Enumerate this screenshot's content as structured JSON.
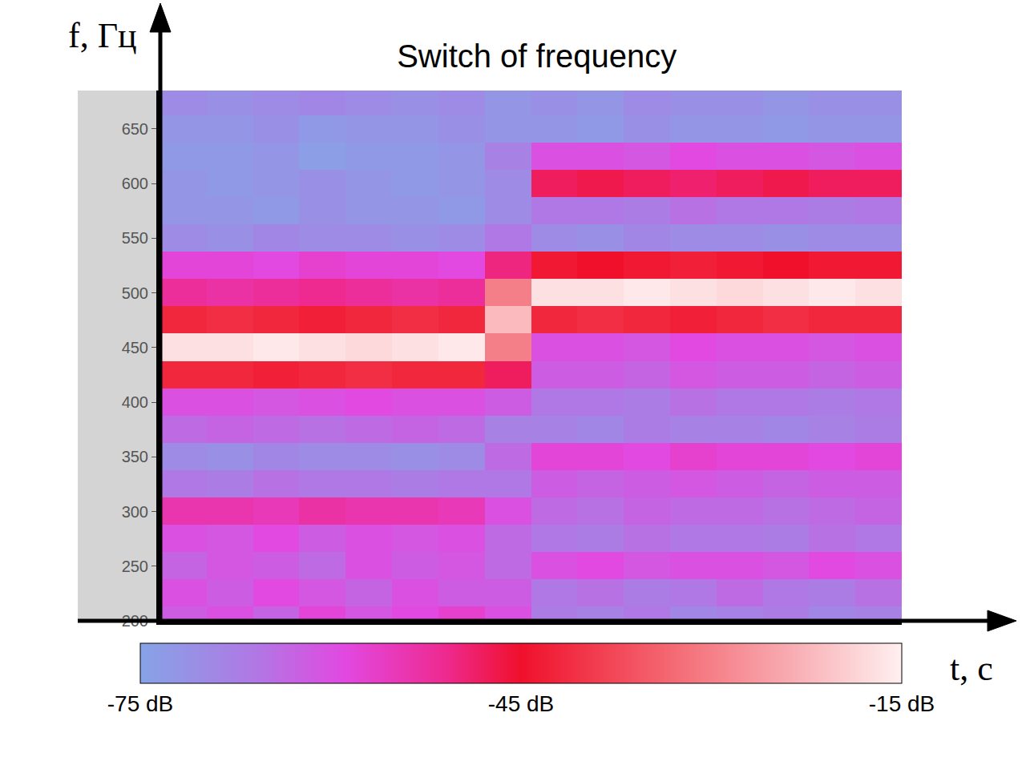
{
  "chart_data": {
    "type": "heatmap",
    "title": "Switch of frequency",
    "x_label": "t, с",
    "y_label": "f, Гц",
    "x": [
      0.5,
      1.5,
      2.5,
      3.5,
      4.5,
      5.5,
      6.5,
      7.5,
      8.5,
      9.5,
      10.5,
      11.5,
      12.5,
      13.5,
      14.5,
      15.5
    ],
    "y": [
      200,
      225,
      250,
      275,
      300,
      325,
      350,
      375,
      400,
      425,
      450,
      475,
      500,
      525,
      550,
      575,
      600,
      625,
      650,
      675
    ],
    "z": [
      [
        -62,
        -60,
        -63,
        -58,
        -61,
        -59,
        -57,
        -60,
        -67,
        -68,
        -66,
        -69,
        -68,
        -67,
        -69,
        -68
      ],
      [
        -60,
        -62,
        -59,
        -61,
        -63,
        -60,
        -62,
        -62,
        -66,
        -65,
        -67,
        -66,
        -64,
        -66,
        -67,
        -65
      ],
      [
        -63,
        -61,
        -62,
        -64,
        -60,
        -62,
        -61,
        -64,
        -60,
        -59,
        -61,
        -60,
        -60,
        -61,
        -59,
        -60
      ],
      [
        -60,
        -61,
        -59,
        -62,
        -60,
        -61,
        -60,
        -64,
        -66,
        -67,
        -65,
        -66,
        -66,
        -67,
        -65,
        -66
      ],
      [
        -54,
        -54,
        -55,
        -53,
        -54,
        -54,
        -55,
        -60,
        -64,
        -65,
        -63,
        -64,
        -64,
        -65,
        -64,
        -63
      ],
      [
        -66,
        -67,
        -65,
        -66,
        -66,
        -67,
        -66,
        -66,
        -62,
        -63,
        -62,
        -61,
        -62,
        -63,
        -62,
        -62
      ],
      [
        -70,
        -71,
        -69,
        -70,
        -70,
        -71,
        -70,
        -64,
        -58,
        -58,
        -59,
        -57,
        -58,
        -58,
        -59,
        -58
      ],
      [
        -64,
        -63,
        -64,
        -65,
        -64,
        -63,
        -64,
        -68,
        -68,
        -69,
        -67,
        -68,
        -68,
        -69,
        -68,
        -67
      ],
      [
        -60,
        -60,
        -61,
        -60,
        -59,
        -60,
        -60,
        -62,
        -66,
        -66,
        -67,
        -65,
        -66,
        -66,
        -67,
        -66
      ],
      [
        -42,
        -42,
        -43,
        -42,
        -41,
        -42,
        -42,
        -48,
        -62,
        -62,
        -63,
        -61,
        -62,
        -62,
        -63,
        -62
      ],
      [
        -17,
        -17,
        -16,
        -17,
        -18,
        -17,
        -16,
        -30,
        -60,
        -60,
        -61,
        -59,
        -60,
        -60,
        -61,
        -60
      ],
      [
        -42,
        -41,
        -42,
        -43,
        -42,
        -41,
        -42,
        -22,
        -42,
        -41,
        -42,
        -43,
        -42,
        -41,
        -42,
        -42
      ],
      [
        -52,
        -53,
        -52,
        -51,
        -52,
        -53,
        -52,
        -30,
        -17,
        -17,
        -16,
        -17,
        -18,
        -17,
        -16,
        -17
      ],
      [
        -58,
        -58,
        -59,
        -57,
        -58,
        -58,
        -59,
        -50,
        -44,
        -45,
        -44,
        -43,
        -44,
        -45,
        -44,
        -44
      ],
      [
        -70,
        -71,
        -69,
        -70,
        -70,
        -71,
        -70,
        -66,
        -70,
        -71,
        -69,
        -70,
        -70,
        -71,
        -70,
        -70
      ],
      [
        -72,
        -72,
        -73,
        -71,
        -72,
        -72,
        -73,
        -70,
        -66,
        -66,
        -67,
        -65,
        -66,
        -66,
        -67,
        -66
      ],
      [
        -72,
        -73,
        -72,
        -71,
        -72,
        -73,
        -72,
        -70,
        -48,
        -47,
        -48,
        -49,
        -48,
        -47,
        -48,
        -48
      ],
      [
        -73,
        -73,
        -72,
        -74,
        -73,
        -73,
        -72,
        -68,
        -60,
        -60,
        -61,
        -59,
        -60,
        -60,
        -61,
        -60
      ],
      [
        -72,
        -72,
        -71,
        -73,
        -72,
        -72,
        -71,
        -72,
        -72,
        -73,
        -71,
        -72,
        -72,
        -73,
        -72,
        -72
      ],
      [
        -70,
        -71,
        -70,
        -69,
        -70,
        -71,
        -70,
        -72,
        -71,
        -72,
        -70,
        -71,
        -71,
        -72,
        -71,
        -71
      ]
    ],
    "xlim": [
      0,
      16
    ],
    "ylim": [
      200,
      685
    ],
    "yticks": [
      200,
      250,
      300,
      350,
      400,
      450,
      500,
      550,
      600,
      650
    ],
    "tick_labels": "y",
    "grid": false,
    "colorbar": {
      "range": [
        -75,
        -15
      ],
      "ticks": [
        {
          "value": -75,
          "label": "-75 dB"
        },
        {
          "value": -45,
          "label": "-45 dB"
        },
        {
          "value": -15,
          "label": "-15 dB"
        }
      ]
    }
  }
}
